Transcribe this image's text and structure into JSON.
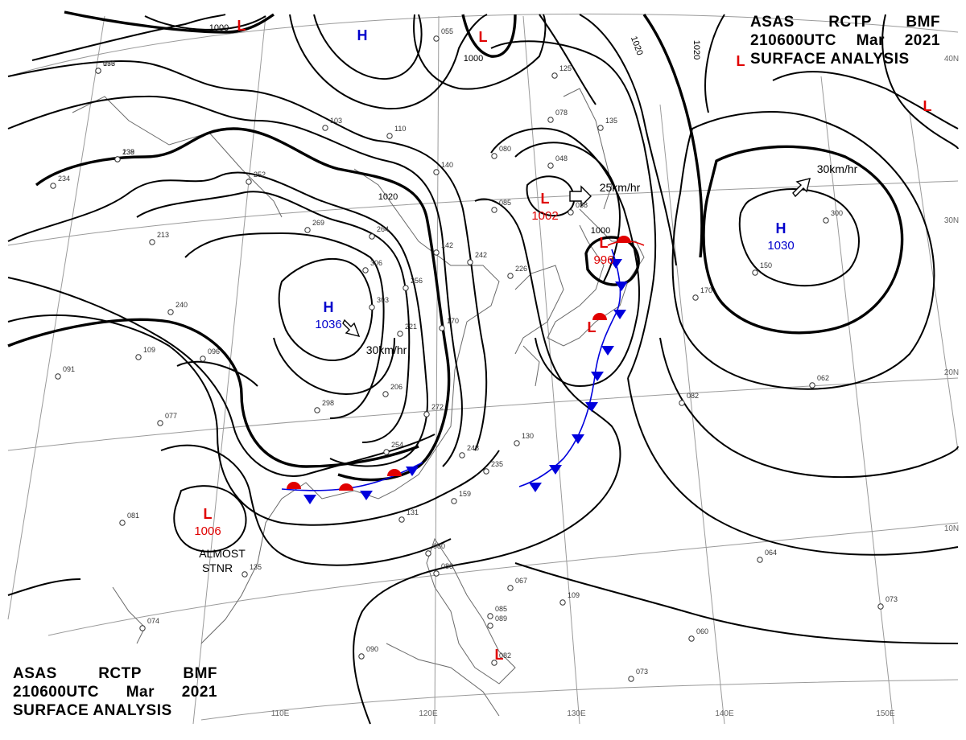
{
  "header": {
    "line1": [
      "ASAS",
      "RCTP",
      "BMF"
    ],
    "line2": [
      "210600UTC",
      "Mar",
      "2021"
    ],
    "line3": "SURFACE ANALYSIS"
  },
  "colors": {
    "low": "#e00000",
    "high": "#0000cc",
    "warm_front": "#e00000",
    "cold_front": "#0000dd",
    "isobar": "#000000"
  },
  "pressure_centers": [
    {
      "type": "L",
      "value": "",
      "note": ""
    },
    {
      "type": "H",
      "value": "",
      "note": ""
    },
    {
      "type": "L",
      "value": "",
      "note": ""
    },
    {
      "type": "L",
      "value": "",
      "note": ""
    },
    {
      "type": "L",
      "value": "",
      "note": ""
    },
    {
      "type": "L",
      "value": "1002",
      "note": ""
    },
    {
      "type": "H",
      "value": "1030",
      "note": ""
    },
    {
      "type": "L",
      "value": "996",
      "note": ""
    },
    {
      "type": "H",
      "value": "1036",
      "note": ""
    },
    {
      "type": "L",
      "value": "",
      "note": ""
    },
    {
      "type": "L",
      "value": "1006",
      "note": "ALMOST STNR"
    },
    {
      "type": "L",
      "value": "",
      "note": ""
    }
  ],
  "motion_labels": [
    "25km/hr",
    "30km/hr",
    "30km/hr"
  ],
  "isobar_labels": [
    "1000",
    "1000",
    "1020",
    "1020",
    "1020",
    "1000"
  ],
  "latitude_labels": [
    "40N",
    "30N",
    "20N",
    "10N"
  ],
  "longitude_labels": [
    "110E",
    "120E",
    "130E",
    "140E",
    "150E"
  ],
  "station_values": [
    "156",
    "138",
    "234",
    "252",
    "213",
    "240",
    "109",
    "096",
    "091",
    "077",
    "081",
    "074",
    "090",
    "103",
    "110",
    "140",
    "080",
    "085",
    "048",
    "038",
    "078",
    "135",
    "125",
    "055",
    "269",
    "264",
    "306",
    "303",
    "298",
    "206",
    "272",
    "254",
    "248",
    "235",
    "159",
    "131",
    "135",
    "080",
    "088",
    "067",
    "109",
    "089",
    "085",
    "082",
    "073",
    "060",
    "064",
    "073",
    "082",
    "062",
    "130",
    "170",
    "150",
    "300",
    "256",
    "221",
    "142",
    "242",
    "226",
    "170",
    "073",
    "239"
  ]
}
